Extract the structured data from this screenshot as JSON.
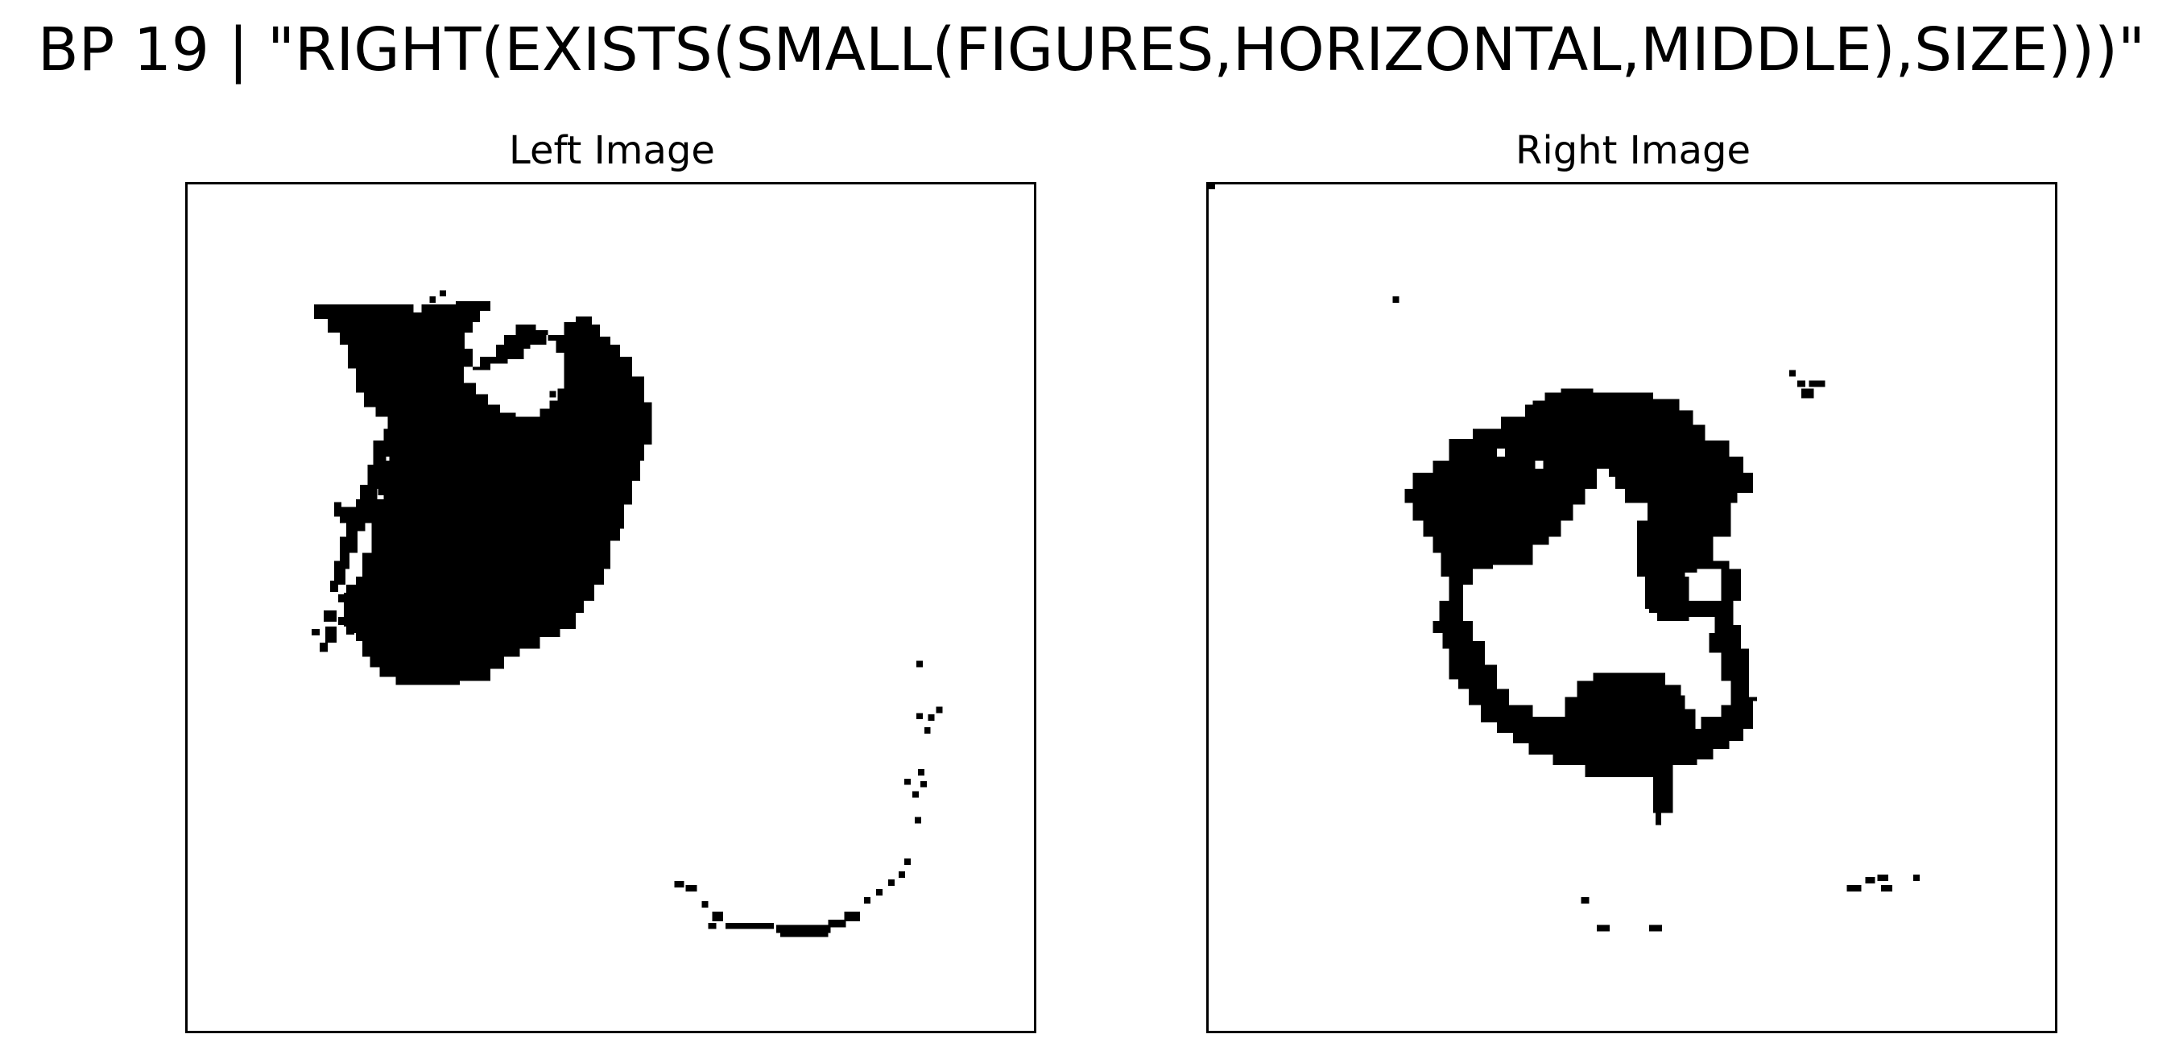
{
  "figure": {
    "title": "BP 19 | \"RIGHT(EXISTS(SMALL(FIGURES,HORIZONTAL,MIDDLE),SIZE)))\""
  },
  "panels": [
    {
      "id": "left",
      "title": "Left Image"
    },
    {
      "id": "right",
      "title": "Right Image"
    }
  ],
  "colors": {
    "ink": "#000000",
    "background": "#ffffff"
  }
}
